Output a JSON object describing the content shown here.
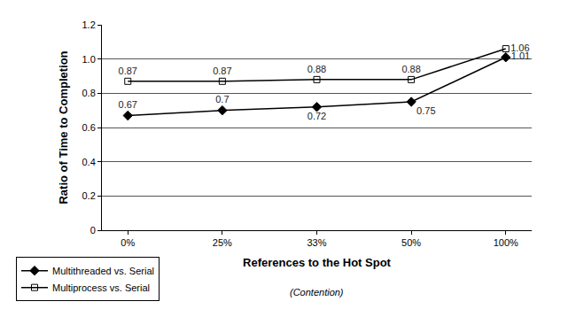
{
  "chart_data": {
    "type": "line",
    "xlabel": "References to the Hot Spot",
    "ylabel": "Ratio of Time to Completion",
    "annotations": [
      "(Contention)"
    ],
    "categories": [
      "0%",
      "25%",
      "33%",
      "50%",
      "100%"
    ],
    "series": [
      {
        "name": "Multithreaded vs. Serial",
        "color": "#000000",
        "marker": "diamond",
        "line_style": "solid",
        "values": [
          0.67,
          0.7,
          0.72,
          0.75,
          1.01
        ]
      },
      {
        "name": "Multiprocess vs. Serial",
        "color": "#000000",
        "marker": "square-open",
        "line_style": "solid",
        "values": [
          0.87,
          0.87,
          0.88,
          0.88,
          1.06
        ]
      }
    ],
    "ylim": [
      0,
      1.2
    ],
    "yticks": [
      0,
      0.2,
      0.4,
      0.6,
      0.8,
      {
        "value": 1,
        "label": "1.0"
      },
      1.2
    ],
    "grid": true,
    "legend": "bottom left",
    "data_labels": true
  }
}
